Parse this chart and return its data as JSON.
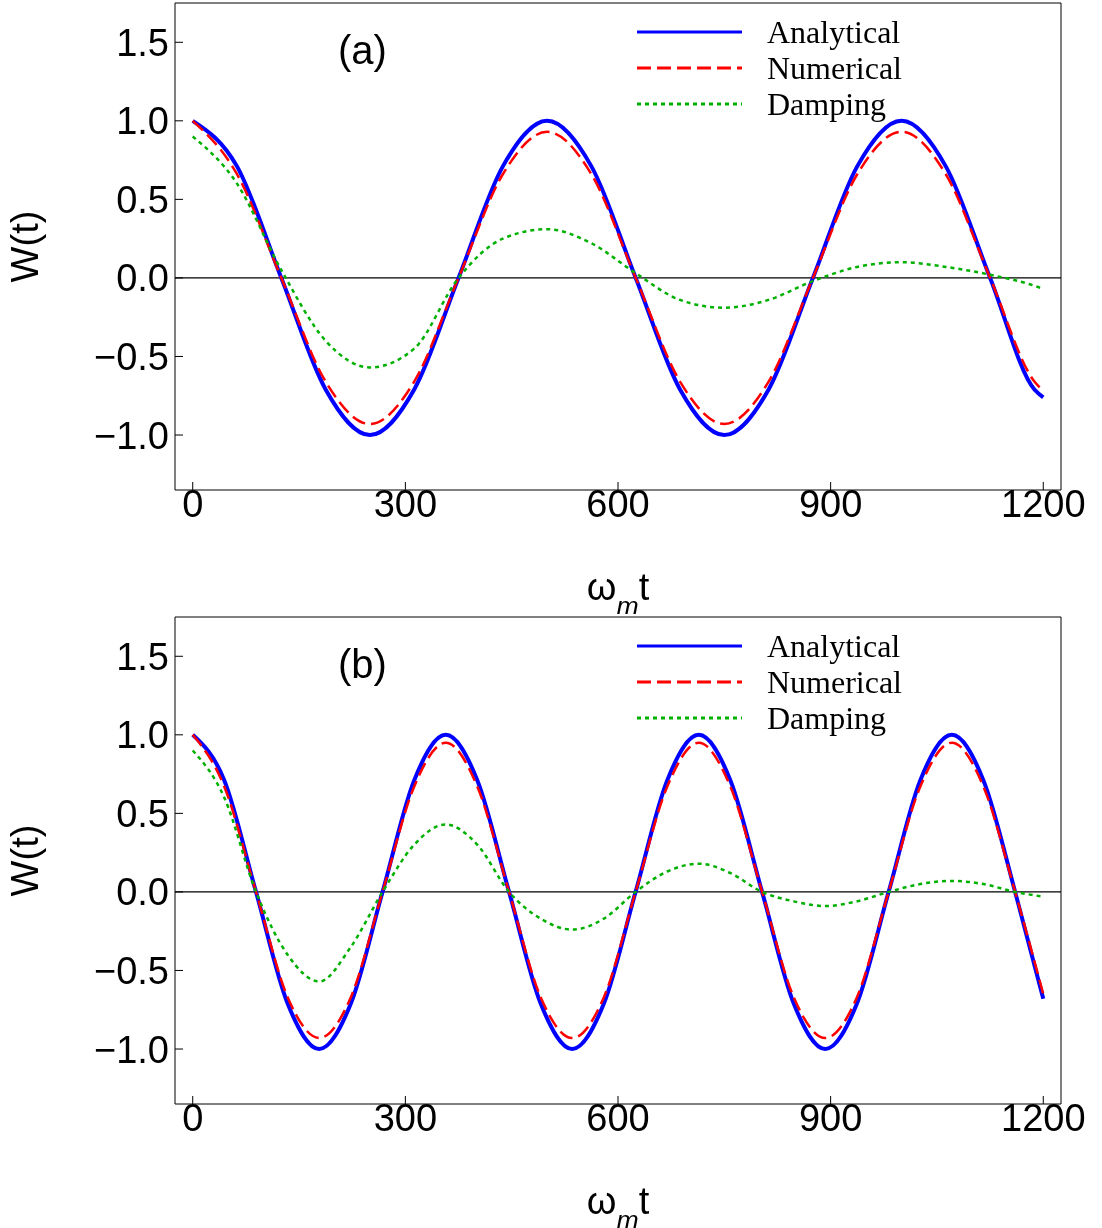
{
  "chart_data": [
    {
      "type": "line",
      "title": null,
      "annotations": [
        "(a)"
      ],
      "xlabel": "ω$_{m}$t",
      "ylabel": "W(t)",
      "x": [
        0,
        62.5,
        125,
        187.5,
        250,
        312.5,
        375,
        437.5,
        500,
        562.5,
        625,
        687.5,
        750,
        812.5,
        875,
        937.5,
        1000,
        1062.5,
        1125,
        1187.5,
        1200
      ],
      "series": [
        {
          "name": "Analytical",
          "color": "#0000ff",
          "line_style": "solid",
          "values": [
            1,
            0.71,
            0,
            -0.71,
            -1,
            -0.71,
            0,
            0.71,
            1,
            0.71,
            0,
            -0.71,
            -1,
            -0.71,
            0,
            0.71,
            1,
            0.71,
            0,
            -0.71,
            -0.76
          ]
        },
        {
          "name": "Numerical",
          "color": "#ff0000",
          "line_style": "dashed",
          "values": [
            1,
            0.66,
            0,
            -0.66,
            -0.93,
            -0.66,
            0,
            0.66,
            0.93,
            0.66,
            0,
            -0.66,
            -0.93,
            -0.66,
            0,
            0.66,
            0.93,
            0.66,
            0,
            -0.66,
            -0.72
          ]
        },
        {
          "name": "Damping",
          "color": "#00b000",
          "line_style": "dotted",
          "values": [
            0.9,
            0.6,
            0.05,
            -0.4,
            -0.57,
            -0.45,
            0,
            0.25,
            0.31,
            0.22,
            0.03,
            -0.14,
            -0.19,
            -0.14,
            -0.02,
            0.07,
            0.1,
            0.07,
            0.02,
            -0.05,
            -0.07
          ]
        }
      ],
      "xlim": [
        -25,
        1225
      ],
      "xticks": [
        0,
        300,
        600,
        900,
        1200
      ],
      "ylim": [
        -1.35,
        1.75
      ],
      "yticks": [
        {
          "value": -1,
          "label": "−1.0"
        },
        {
          "value": -0.5,
          "label": "−0.5"
        },
        {
          "value": 0,
          "label": "0.0"
        },
        {
          "value": 0.5,
          "label": "0.5"
        },
        {
          "value": 1,
          "label": "1.0"
        },
        {
          "value": 1.5,
          "label": "1.5"
        }
      ],
      "ref_lines": [
        {
          "axis": "y",
          "value": 0,
          "label": null,
          "color": "#000000"
        }
      ],
      "legend": "top right",
      "grid": false,
      "marker": "none"
    },
    {
      "type": "line",
      "title": null,
      "annotations": [
        "(b)"
      ],
      "xlabel": "ω$_{m}$t",
      "ylabel": "W(t)",
      "x": [
        0,
        44.6,
        89.3,
        133.9,
        178.5,
        223.1,
        267.8,
        312.4,
        357,
        401.6,
        446.3,
        490.9,
        535.5,
        580.1,
        624.8,
        669.4,
        714,
        758.6,
        803.3,
        847.9,
        892.5,
        937.1,
        981.8,
        1026.4,
        1071,
        1115.6,
        1160.3,
        1200
      ],
      "series": [
        {
          "name": "Analytical",
          "color": "#0000ff",
          "line_style": "solid",
          "values": [
            1,
            0.71,
            0,
            -0.71,
            -1,
            -0.71,
            0,
            0.71,
            1,
            0.71,
            0,
            -0.71,
            -1,
            -0.71,
            0,
            0.71,
            1,
            0.71,
            0,
            -0.71,
            -1,
            -0.71,
            0,
            0.71,
            1,
            0.71,
            0,
            -0.68
          ]
        },
        {
          "name": "Numerical",
          "color": "#ff0000",
          "line_style": "dashed",
          "values": [
            1,
            0.67,
            0,
            -0.67,
            -0.93,
            -0.67,
            0,
            0.67,
            0.95,
            0.67,
            0,
            -0.67,
            -0.93,
            -0.67,
            0,
            0.67,
            0.95,
            0.67,
            0,
            -0.67,
            -0.93,
            -0.67,
            0,
            0.67,
            0.95,
            0.67,
            0,
            -0.65
          ]
        },
        {
          "name": "Damping",
          "color": "#00b000",
          "line_style": "dotted",
          "values": [
            0.9,
            0.6,
            0,
            -0.4,
            -0.57,
            -0.35,
            0,
            0.3,
            0.43,
            0.3,
            0,
            -0.17,
            -0.24,
            -0.17,
            0,
            0.13,
            0.18,
            0.12,
            0,
            -0.06,
            -0.09,
            -0.06,
            0,
            0.05,
            0.07,
            0.05,
            0,
            -0.03
          ]
        }
      ],
      "xlim": [
        -25,
        1225
      ],
      "xticks": [
        0,
        300,
        600,
        900,
        1200
      ],
      "ylim": [
        -1.35,
        1.75
      ],
      "yticks": [
        {
          "value": -1,
          "label": "−1.0"
        },
        {
          "value": -0.5,
          "label": "−0.5"
        },
        {
          "value": 0,
          "label": "0.0"
        },
        {
          "value": 0.5,
          "label": "0.5"
        },
        {
          "value": 1,
          "label": "1.0"
        },
        {
          "value": 1.5,
          "label": "1.5"
        }
      ],
      "ref_lines": [
        {
          "axis": "y",
          "value": 0,
          "label": null,
          "color": "#000000"
        }
      ],
      "legend": "top right",
      "grid": false,
      "marker": "none"
    }
  ]
}
